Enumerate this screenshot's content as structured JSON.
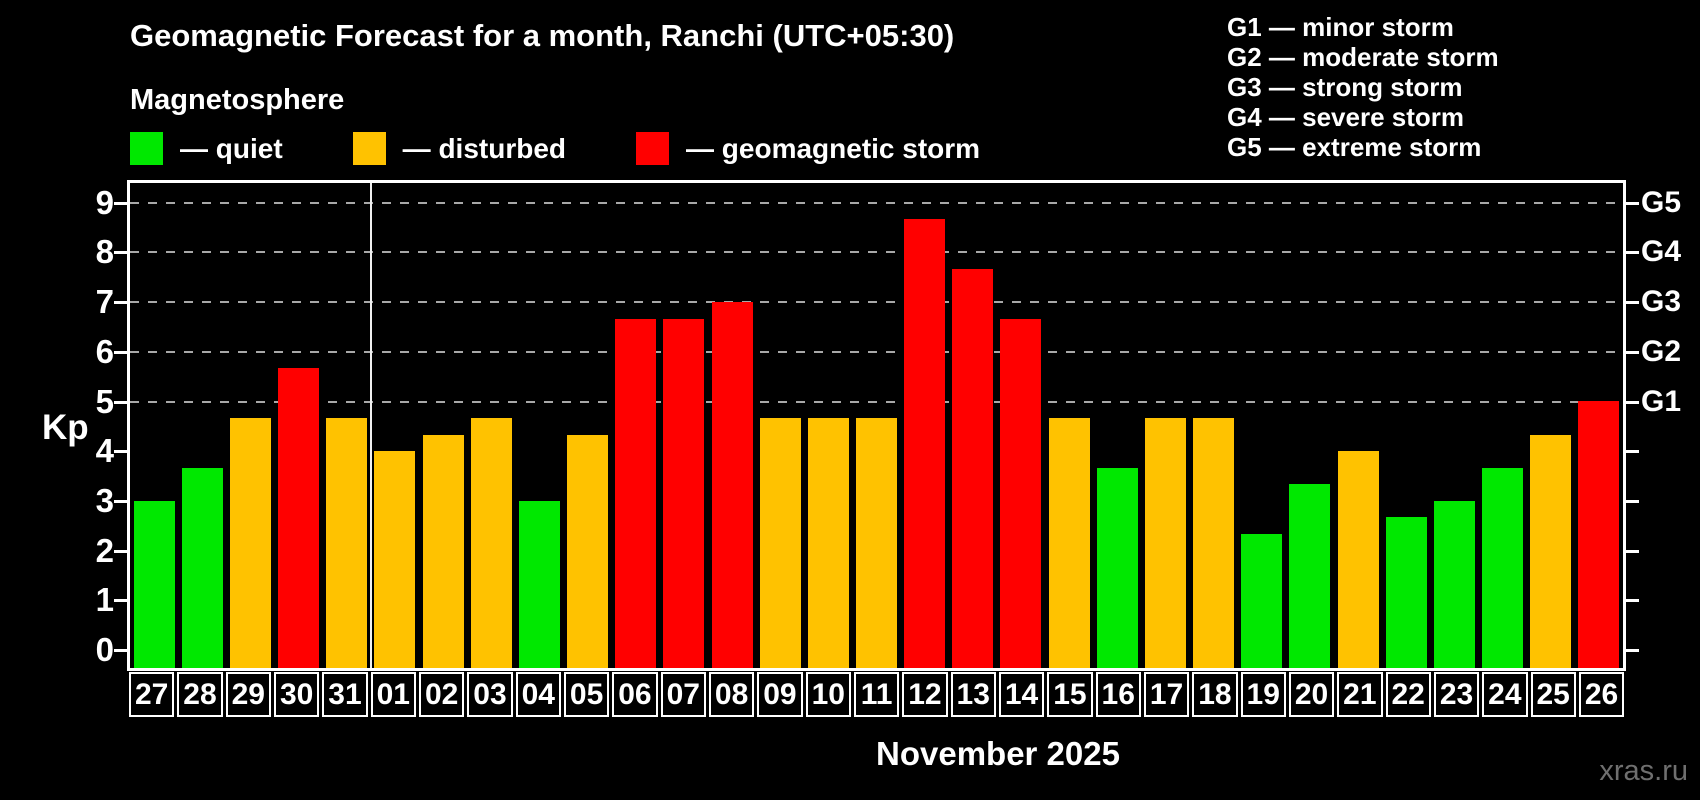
{
  "title": "Geomagnetic Forecast for a month, Ranchi (UTC+05:30)",
  "subtitle": "Magnetosphere",
  "legend": {
    "items": [
      {
        "key": "quiet",
        "label": "— quiet",
        "color": "#00e800"
      },
      {
        "key": "disturbed",
        "label": "— disturbed",
        "color": "#ffc200"
      },
      {
        "key": "storm",
        "label": "— geomagnetic storm",
        "color": "#ff0000"
      }
    ]
  },
  "storm_scale_legend": [
    "G1 — minor storm",
    "G2 — moderate storm",
    "G3 — strong storm",
    "G4 — severe storm",
    "G5 — extreme storm"
  ],
  "watermark": "xras.ru",
  "chart_data": {
    "type": "bar",
    "title": "Geomagnetic Forecast for a month, Ranchi (UTC+05:30)",
    "xlabel": "November 2025",
    "ylabel": "Kp",
    "ylim": [
      -0.4,
      9.4
    ],
    "yticks": [
      0,
      1,
      2,
      3,
      4,
      5,
      6,
      7,
      8,
      9
    ],
    "gridlines_at": [
      5,
      6,
      7,
      8,
      9
    ],
    "grid": "dashed horizontal at storm levels only",
    "legend_position": "top-left",
    "categories": [
      "27",
      "28",
      "29",
      "30",
      "31",
      "01",
      "02",
      "03",
      "04",
      "05",
      "06",
      "07",
      "08",
      "09",
      "10",
      "11",
      "12",
      "13",
      "14",
      "15",
      "16",
      "17",
      "18",
      "19",
      "20",
      "21",
      "22",
      "23",
      "24",
      "25",
      "26"
    ],
    "values": [
      3.0,
      3.67,
      4.67,
      5.67,
      4.67,
      4.0,
      4.33,
      4.67,
      3.0,
      4.33,
      6.67,
      6.67,
      7.0,
      4.67,
      4.67,
      4.67,
      8.67,
      7.67,
      6.67,
      4.67,
      3.67,
      4.67,
      4.67,
      2.33,
      3.33,
      4.0,
      2.67,
      3.0,
      3.67,
      4.33,
      5.0
    ],
    "statuses": [
      "quiet",
      "quiet",
      "disturbed",
      "storm",
      "disturbed",
      "disturbed",
      "disturbed",
      "disturbed",
      "quiet",
      "disturbed",
      "storm",
      "storm",
      "storm",
      "disturbed",
      "disturbed",
      "disturbed",
      "storm",
      "storm",
      "storm",
      "disturbed",
      "quiet",
      "disturbed",
      "disturbed",
      "quiet",
      "quiet",
      "disturbed",
      "quiet",
      "quiet",
      "quiet",
      "disturbed",
      "storm"
    ],
    "status_colors": {
      "quiet": "#00e800",
      "disturbed": "#ffc200",
      "storm": "#ff0000"
    },
    "right_axis": [
      {
        "label": "G1",
        "kp": 5
      },
      {
        "label": "G2",
        "kp": 6
      },
      {
        "label": "G3",
        "kp": 7
      },
      {
        "label": "G4",
        "kp": 8
      },
      {
        "label": "G5",
        "kp": 9
      }
    ],
    "month_separator_after_index": 4
  }
}
